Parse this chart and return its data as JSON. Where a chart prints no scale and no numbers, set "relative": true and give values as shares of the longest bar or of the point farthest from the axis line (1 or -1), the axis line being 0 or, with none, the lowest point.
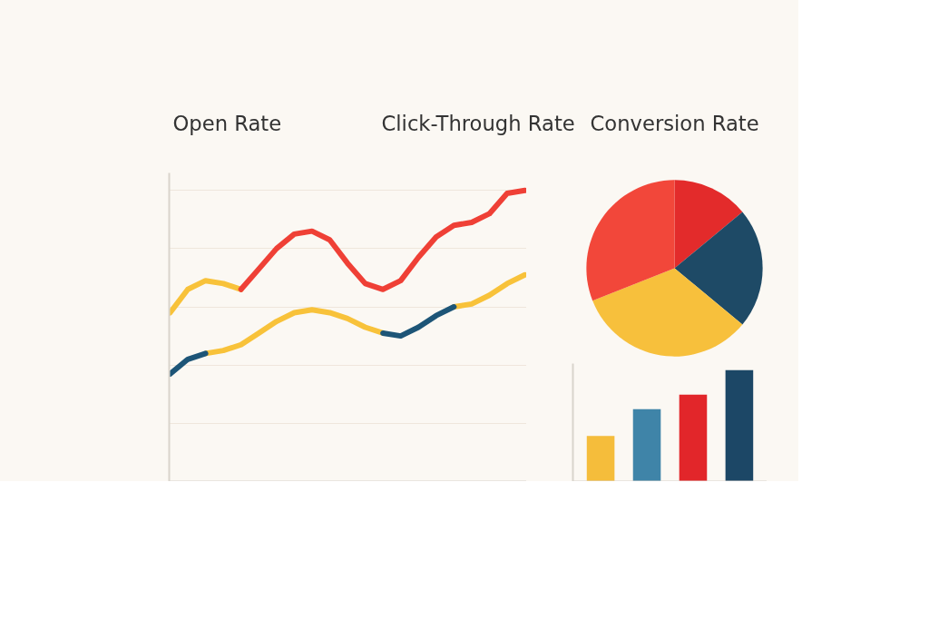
{
  "chart_data": [
    {
      "type": "other",
      "annotations": [
        "Open Rate",
        "Click-Through Rate",
        "Conversion Rate"
      ]
    },
    {
      "type": "line",
      "relative": true,
      "grid": "y",
      "line_style": "solid",
      "categories": [
        null,
        null,
        null,
        null,
        null,
        null,
        null,
        null,
        null,
        null,
        null,
        null,
        null,
        null,
        null,
        null,
        null,
        null,
        null,
        null,
        null
      ],
      "series": [
        {
          "color": "#f8c23a",
          "values": [
            0.58,
            0.66,
            0.69,
            0.68,
            0.66,
            null,
            null,
            null,
            null,
            null,
            null,
            null,
            null,
            null,
            null,
            null,
            null,
            null,
            null,
            null,
            null
          ]
        },
        {
          "color": "#ef4036",
          "values": [
            null,
            null,
            null,
            null,
            0.66,
            0.73,
            0.8,
            0.85,
            0.86,
            0.83,
            0.75,
            0.68,
            0.66,
            0.69,
            0.77,
            0.84,
            0.88,
            0.89,
            0.92,
            0.99,
            1
          ]
        },
        {
          "color": "#f8c23a",
          "values": [
            null,
            null,
            0.44,
            0.45,
            0.47,
            0.51,
            0.55,
            0.58,
            0.59,
            0.58,
            0.56,
            0.53,
            0.51,
            null,
            null,
            null,
            0.6,
            0.61,
            0.64,
            0.68,
            0.71
          ]
        },
        {
          "color": "#1d5577",
          "values": [
            0.37,
            0.42,
            0.44,
            null,
            null,
            null,
            null,
            null,
            null,
            null,
            null,
            null,
            0.51,
            0.5,
            0.53,
            0.57,
            0.6,
            null,
            null,
            null,
            null
          ]
        }
      ]
    },
    {
      "type": "pie",
      "categories": [
        null,
        null,
        null,
        null
      ],
      "values": [
        14,
        22,
        33,
        31
      ],
      "colors": [
        "#e32b2b",
        "#1e4a66",
        "#f7c03c",
        "#f2473a"
      ]
    },
    {
      "type": "bar",
      "relative": true,
      "categories": [
        null,
        null,
        null,
        null
      ],
      "values": [
        0.41,
        0.65,
        0.78,
        1
      ],
      "colors": [
        "#f5bd3b",
        "#3f84a8",
        "#e2262a",
        "#1c4766"
      ]
    }
  ]
}
